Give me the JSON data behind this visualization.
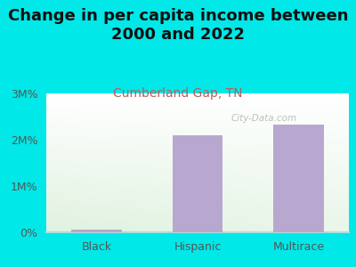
{
  "title": "Change in per capita income between\n2000 and 2022",
  "subtitle": "Cumberland Gap, TN",
  "categories": [
    "Black",
    "Hispanic",
    "Multirace"
  ],
  "values": [
    52000,
    2100000,
    2320000
  ],
  "bar_color": "#b8a8d0",
  "title_fontsize": 13,
  "subtitle_fontsize": 10,
  "subtitle_color": "#b06060",
  "outer_bg_color": "#00e8e8",
  "yticks": [
    0,
    1000000,
    2000000,
    3000000
  ],
  "ytick_labels": [
    "0%",
    "1M%",
    "2M%",
    "3M%"
  ],
  "ylim": [
    0,
    3000000
  ],
  "watermark": "City-Data.com",
  "tick_color": "#555555",
  "axis_line_color": "#aadddd"
}
